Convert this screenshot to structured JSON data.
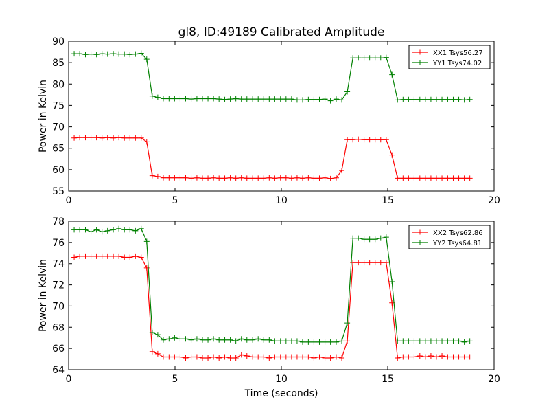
{
  "figure": {
    "title": "gl8, ID:49189 Calibrated Amplitude",
    "xlabel": "Time (seconds)"
  },
  "colors": {
    "xx": "#ff0000",
    "yy": "#008000"
  },
  "chart_data": [
    {
      "type": "line",
      "title": "gl8, ID:49189 Calibrated Amplitude",
      "xlabel": "",
      "ylabel": "Power in Kelvin",
      "xlim": [
        0,
        20
      ],
      "ylim": [
        55,
        90
      ],
      "xticks": [
        0,
        5,
        10,
        15,
        20
      ],
      "yticks": [
        55,
        60,
        65,
        70,
        75,
        80,
        85,
        90
      ],
      "grid": false,
      "legend": "top-right",
      "x": [
        0.26,
        0.52,
        0.79,
        1.05,
        1.31,
        1.57,
        1.83,
        2.1,
        2.36,
        2.62,
        2.88,
        3.14,
        3.41,
        3.67,
        3.93,
        4.19,
        4.45,
        4.72,
        4.98,
        5.24,
        5.5,
        5.76,
        6.03,
        6.29,
        6.55,
        6.81,
        7.07,
        7.34,
        7.6,
        7.86,
        8.12,
        8.38,
        8.65,
        8.91,
        9.17,
        9.43,
        9.69,
        9.96,
        10.22,
        10.48,
        10.74,
        11.0,
        11.27,
        11.53,
        11.79,
        12.05,
        12.31,
        12.58,
        12.84,
        13.1,
        13.36,
        13.62,
        13.89,
        14.15,
        14.41,
        14.67,
        14.93,
        15.2,
        15.46,
        15.72,
        15.98,
        16.24,
        16.51,
        16.77,
        17.03,
        17.29,
        17.55,
        17.82,
        18.08,
        18.34,
        18.6,
        18.86
      ],
      "series": [
        {
          "name": "XX1 Tsys56.27",
          "color": "#ff0000",
          "values": [
            67.4,
            67.5,
            67.5,
            67.5,
            67.5,
            67.4,
            67.5,
            67.4,
            67.5,
            67.4,
            67.4,
            67.4,
            67.4,
            66.5,
            58.6,
            58.4,
            58.1,
            58.1,
            58.1,
            58.1,
            58.1,
            58.0,
            58.1,
            58.0,
            58.0,
            58.1,
            58.0,
            58.0,
            58.1,
            58.0,
            58.1,
            58.0,
            58.0,
            58.0,
            58.0,
            58.1,
            58.0,
            58.1,
            58.1,
            58.0,
            58.1,
            58.0,
            58.1,
            58.0,
            58.0,
            58.1,
            57.9,
            58.1,
            59.8,
            67.0,
            67.0,
            67.1,
            67.0,
            67.0,
            67.0,
            67.0,
            67.0,
            63.4,
            58.0,
            58.0,
            58.0,
            58.0,
            58.0,
            58.0,
            58.0,
            58.0,
            58.0,
            58.0,
            58.0,
            58.0,
            58.0,
            58.0
          ]
        },
        {
          "name": "YY1 Tsys74.02",
          "color": "#008000",
          "values": [
            87.1,
            87.1,
            86.9,
            87.0,
            86.9,
            87.1,
            87.0,
            87.1,
            87.0,
            87.0,
            86.9,
            87.0,
            87.2,
            85.8,
            77.2,
            76.9,
            76.6,
            76.6,
            76.6,
            76.6,
            76.6,
            76.5,
            76.6,
            76.6,
            76.6,
            76.6,
            76.5,
            76.4,
            76.5,
            76.6,
            76.5,
            76.5,
            76.5,
            76.5,
            76.5,
            76.5,
            76.5,
            76.5,
            76.5,
            76.5,
            76.3,
            76.3,
            76.4,
            76.4,
            76.4,
            76.5,
            76.1,
            76.5,
            76.3,
            78.2,
            86.1,
            86.1,
            86.1,
            86.1,
            86.1,
            86.1,
            86.2,
            82.2,
            76.3,
            76.4,
            76.4,
            76.4,
            76.4,
            76.4,
            76.4,
            76.4,
            76.4,
            76.4,
            76.4,
            76.4,
            76.3,
            76.4
          ]
        }
      ]
    },
    {
      "type": "line",
      "title": "",
      "xlabel": "Time (seconds)",
      "ylabel": "Power in Kelvin",
      "xlim": [
        0,
        20
      ],
      "ylim": [
        64,
        78
      ],
      "xticks": [
        0,
        5,
        10,
        15,
        20
      ],
      "yticks": [
        64,
        66,
        68,
        70,
        72,
        74,
        76,
        78
      ],
      "grid": false,
      "legend": "top-right",
      "x": [
        0.26,
        0.52,
        0.79,
        1.05,
        1.31,
        1.57,
        1.83,
        2.1,
        2.36,
        2.62,
        2.88,
        3.14,
        3.41,
        3.67,
        3.93,
        4.19,
        4.45,
        4.72,
        4.98,
        5.24,
        5.5,
        5.76,
        6.03,
        6.29,
        6.55,
        6.81,
        7.07,
        7.34,
        7.6,
        7.86,
        8.12,
        8.38,
        8.65,
        8.91,
        9.17,
        9.43,
        9.69,
        9.96,
        10.22,
        10.48,
        10.74,
        11.0,
        11.27,
        11.53,
        11.79,
        12.05,
        12.31,
        12.58,
        12.84,
        13.1,
        13.36,
        13.62,
        13.89,
        14.15,
        14.41,
        14.67,
        14.93,
        15.2,
        15.46,
        15.72,
        15.98,
        16.24,
        16.51,
        16.77,
        17.03,
        17.29,
        17.55,
        17.82,
        18.08,
        18.34,
        18.6,
        18.86
      ],
      "series": [
        {
          "name": "XX2 Tsys62.86",
          "color": "#ff0000",
          "values": [
            74.6,
            74.7,
            74.7,
            74.7,
            74.7,
            74.7,
            74.7,
            74.7,
            74.7,
            74.6,
            74.6,
            74.7,
            74.6,
            73.6,
            65.7,
            65.5,
            65.2,
            65.2,
            65.2,
            65.2,
            65.1,
            65.2,
            65.2,
            65.1,
            65.1,
            65.2,
            65.1,
            65.2,
            65.1,
            65.1,
            65.4,
            65.3,
            65.2,
            65.2,
            65.2,
            65.1,
            65.2,
            65.2,
            65.2,
            65.2,
            65.2,
            65.2,
            65.2,
            65.1,
            65.2,
            65.1,
            65.1,
            65.2,
            65.1,
            66.7,
            74.1,
            74.1,
            74.1,
            74.1,
            74.1,
            74.1,
            74.1,
            70.3,
            65.1,
            65.2,
            65.2,
            65.2,
            65.3,
            65.2,
            65.3,
            65.2,
            65.3,
            65.2,
            65.2,
            65.2,
            65.2,
            65.2
          ]
        },
        {
          "name": "YY2 Tsys64.81",
          "color": "#008000",
          "values": [
            77.2,
            77.2,
            77.2,
            77.0,
            77.2,
            77.0,
            77.1,
            77.2,
            77.3,
            77.2,
            77.2,
            77.1,
            77.3,
            76.1,
            67.5,
            67.3,
            66.8,
            66.9,
            67.0,
            66.9,
            66.9,
            66.8,
            66.9,
            66.8,
            66.8,
            66.9,
            66.8,
            66.8,
            66.8,
            66.7,
            66.9,
            66.8,
            66.8,
            66.9,
            66.8,
            66.8,
            66.7,
            66.7,
            66.7,
            66.7,
            66.7,
            66.6,
            66.6,
            66.6,
            66.6,
            66.6,
            66.6,
            66.6,
            66.7,
            68.4,
            76.4,
            76.4,
            76.3,
            76.3,
            76.3,
            76.4,
            76.5,
            72.3,
            66.7,
            66.7,
            66.7,
            66.7,
            66.7,
            66.7,
            66.7,
            66.7,
            66.7,
            66.7,
            66.7,
            66.7,
            66.6,
            66.7
          ]
        }
      ]
    }
  ]
}
